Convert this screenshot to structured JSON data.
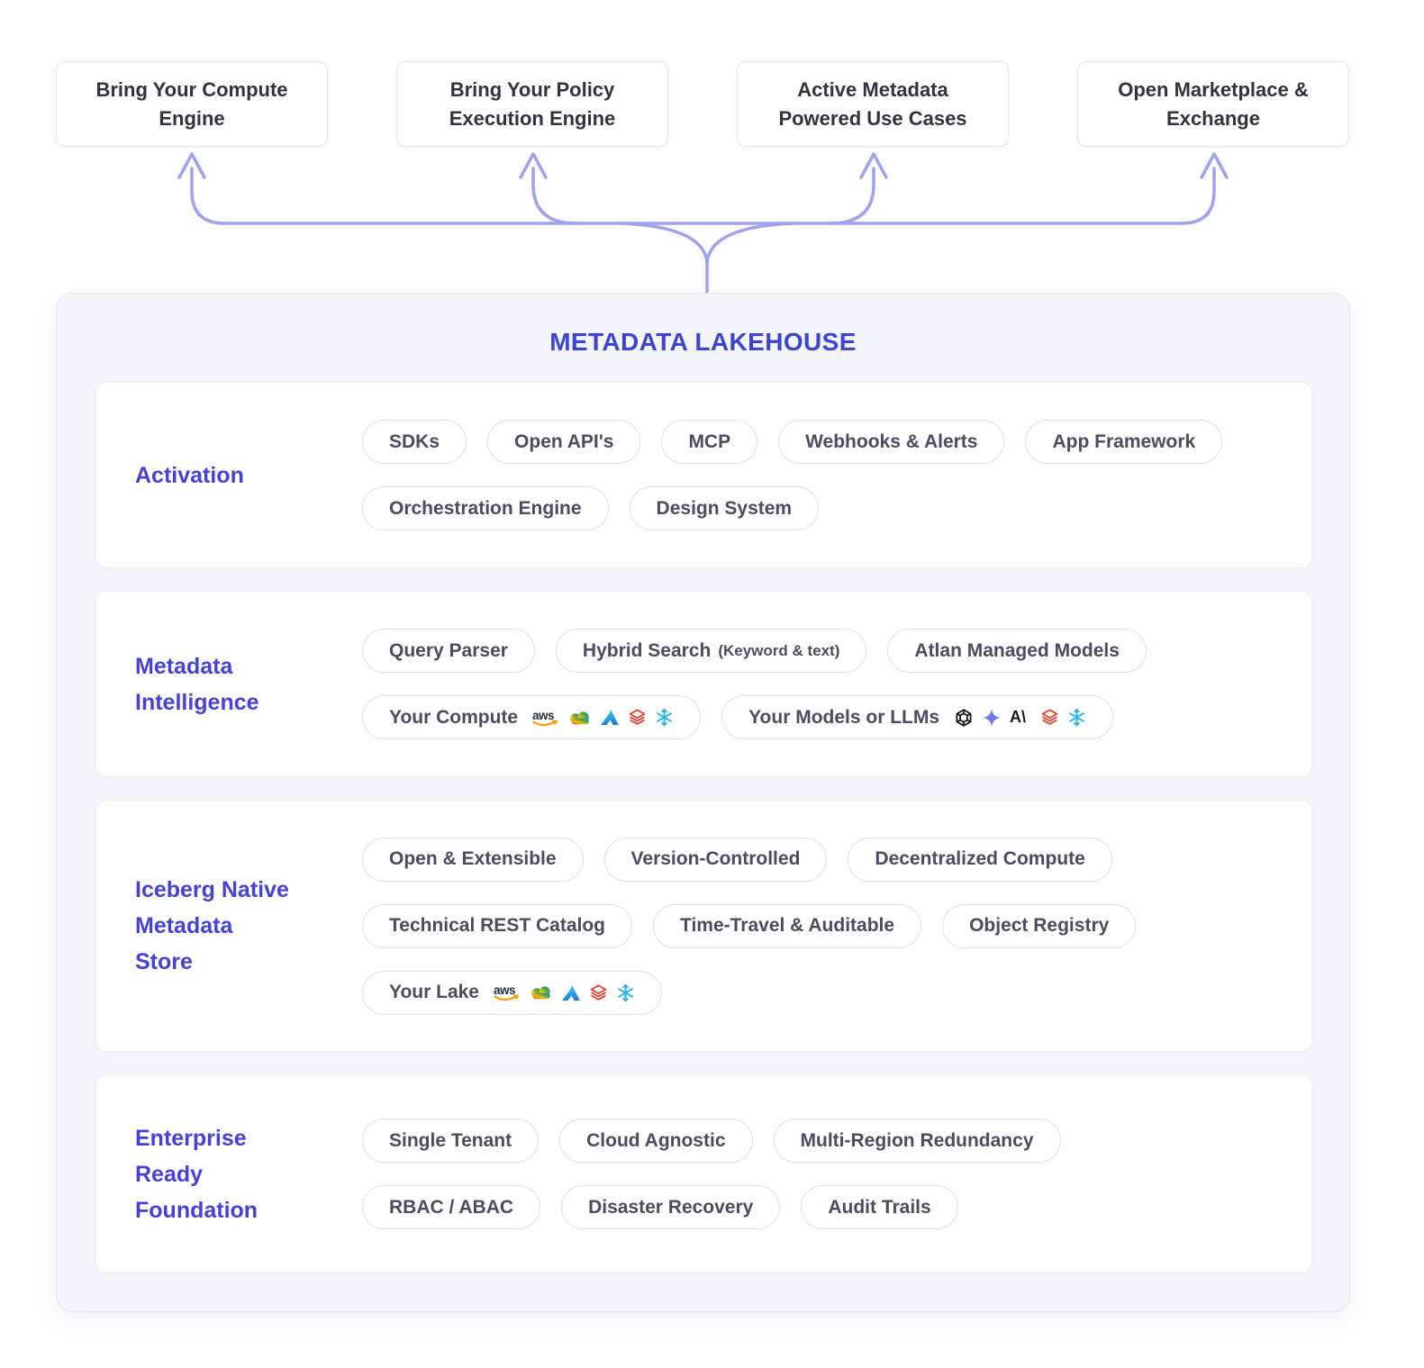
{
  "diagram": {
    "top_boxes": [
      {
        "lines": [
          "Bring Your Compute",
          "Engine"
        ]
      },
      {
        "lines": [
          "Bring Your Policy",
          "Execution Engine"
        ]
      },
      {
        "lines": [
          "Active Metadata",
          "Powered Use Cases"
        ]
      },
      {
        "lines": [
          "Open Marketplace &",
          "Exchange"
        ]
      }
    ],
    "lakehouse": {
      "title": "METADATA LAKEHOUSE",
      "sections": [
        {
          "label_lines": [
            "Activation"
          ],
          "rows": [
            [
              {
                "label": "SDKs"
              },
              {
                "label": "Open API's"
              },
              {
                "label": "MCP"
              },
              {
                "label": "Webhooks & Alerts"
              },
              {
                "label": "App Framework"
              }
            ],
            [
              {
                "label": "Orchestration Engine"
              },
              {
                "label": "Design System"
              }
            ]
          ]
        },
        {
          "label_lines": [
            "Metadata",
            "Intelligence"
          ],
          "rows": [
            [
              {
                "label": "Query Parser"
              },
              {
                "label": "Hybrid Search",
                "sublabel": "(Keyword & text)"
              },
              {
                "label": "Atlan Managed Models"
              }
            ],
            [
              {
                "label": "Your Compute",
                "icons": [
                  "aws",
                  "google-cloud",
                  "azure",
                  "databricks",
                  "snowflake"
                ]
              },
              {
                "label": "Your Models or LLMs",
                "icons": [
                  "openai",
                  "gemini",
                  "anthropic",
                  "databricks",
                  "snowflake"
                ]
              }
            ]
          ]
        },
        {
          "label_lines": [
            "Iceberg Native",
            "Metadata",
            "Store"
          ],
          "rows": [
            [
              {
                "label": "Open & Extensible"
              },
              {
                "label": "Version-Controlled"
              },
              {
                "label": "Decentralized Compute"
              }
            ],
            [
              {
                "label": "Technical REST Catalog"
              },
              {
                "label": "Time-Travel & Auditable"
              },
              {
                "label": "Object Registry"
              }
            ],
            [
              {
                "label": "Your Lake",
                "icons": [
                  "aws",
                  "google-cloud",
                  "azure",
                  "databricks",
                  "snowflake"
                ]
              }
            ]
          ]
        },
        {
          "label_lines": [
            "Enterprise",
            "Ready",
            "Foundation"
          ],
          "rows": [
            [
              {
                "label": "Single Tenant"
              },
              {
                "label": "Cloud Agnostic"
              },
              {
                "label": "Multi-Region Redundancy"
              }
            ],
            [
              {
                "label": "RBAC / ABAC"
              },
              {
                "label": "Disaster Recovery"
              },
              {
                "label": "Audit Trails"
              }
            ]
          ]
        }
      ]
    },
    "colors": {
      "accent": "#4741D6",
      "title_blue": "#3C45D2",
      "arrow_purple": "#9FA2EC",
      "pill_text": "#4B4C60",
      "pill_border": "#DDDEF2",
      "panel_bg": "#F4F5FA",
      "aws_dark": "#252F3E",
      "aws_orange": "#FF9900",
      "google_blue": "#4285F4",
      "google_red": "#EA4335",
      "google_yellow": "#FBBC05",
      "google_green": "#34A853",
      "azure_light": "#35C1F1",
      "azure_dark": "#1B7FD4",
      "databricks_red": "#E2402F",
      "snowflake_blue": "#29B5E8",
      "openai_black": "#191919",
      "gemini_blue": "#418DF8",
      "gemini_purple": "#9168EA",
      "anthropic_black": "#181818"
    }
  }
}
